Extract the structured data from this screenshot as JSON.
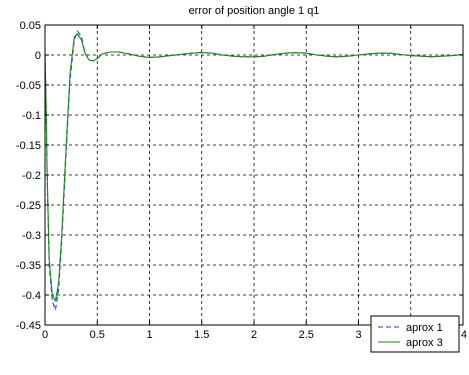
{
  "chart_data": {
    "type": "line",
    "title": "error of position angle 1 q1",
    "xlabel": "",
    "ylabel": "",
    "xlim": [
      0,
      4
    ],
    "ylim": [
      -0.45,
      0.05
    ],
    "xticks": [
      0,
      0.5,
      1,
      1.5,
      2,
      2.5,
      3,
      3.5,
      4
    ],
    "xtick_labels": [
      "0",
      "0.5",
      "1",
      "1.5",
      "2",
      "2.5",
      "3",
      "3.5",
      "4"
    ],
    "yticks": [
      0.05,
      0,
      -0.05,
      -0.1,
      -0.15,
      -0.2,
      -0.25,
      -0.3,
      -0.35,
      -0.4,
      -0.45
    ],
    "ytick_labels": [
      "0.05",
      "0",
      "-0.05",
      "-0.1",
      "-0.15",
      "-0.2",
      "-0.25",
      "-0.3",
      "-0.35",
      "-0.4",
      "-0.45"
    ],
    "grid": true,
    "legend_position": "bottom-right",
    "series": [
      {
        "name": "aprox 1",
        "color": "#1f3fcf",
        "style": "dashed",
        "x": [
          0,
          0.01,
          0.02,
          0.04,
          0.07,
          0.1,
          0.13,
          0.16,
          0.2,
          0.24,
          0.28,
          0.31,
          0.35,
          0.38,
          0.42,
          0.46,
          0.5,
          0.55,
          0.62,
          0.7,
          0.8,
          0.9,
          1.0,
          1.1,
          1.2,
          1.3,
          1.4,
          1.5,
          1.6,
          1.7,
          1.8,
          1.9,
          2.0,
          2.1,
          2.2,
          2.3,
          2.4,
          2.5,
          2.6,
          2.7,
          2.8,
          2.9,
          3.0,
          3.1,
          3.2,
          3.3,
          3.4,
          3.5,
          3.6,
          3.7,
          3.8,
          3.9,
          4.0
        ],
        "values": [
          0,
          -0.08,
          -0.2,
          -0.35,
          -0.41,
          -0.425,
          -0.39,
          -0.31,
          -0.17,
          -0.04,
          0.025,
          0.04,
          0.03,
          0.005,
          -0.008,
          -0.01,
          -0.006,
          0.002,
          0.005,
          0.005,
          0.002,
          -0.002,
          -0.004,
          -0.003,
          -0.001,
          0.001,
          0.003,
          0.004,
          0.003,
          0.0,
          -0.002,
          -0.003,
          -0.003,
          -0.002,
          0.001,
          0.003,
          0.004,
          0.003,
          0.0,
          -0.002,
          -0.003,
          -0.002,
          0.0,
          0.002,
          0.003,
          0.003,
          0.001,
          -0.001,
          -0.002,
          -0.003,
          -0.002,
          -0.001,
          0.001
        ]
      },
      {
        "name": "aprox 3",
        "color": "#1a8a1a",
        "style": "solid",
        "x": [
          0,
          0.01,
          0.02,
          0.04,
          0.07,
          0.1,
          0.13,
          0.16,
          0.2,
          0.24,
          0.28,
          0.31,
          0.35,
          0.38,
          0.42,
          0.46,
          0.5,
          0.55,
          0.62,
          0.7,
          0.8,
          0.9,
          1.0,
          1.1,
          1.2,
          1.3,
          1.4,
          1.5,
          1.6,
          1.7,
          1.8,
          1.9,
          2.0,
          2.1,
          2.2,
          2.3,
          2.4,
          2.5,
          2.6,
          2.7,
          2.8,
          2.9,
          3.0,
          3.1,
          3.2,
          3.3,
          3.4,
          3.5,
          3.6,
          3.7,
          3.8,
          3.9,
          4.0
        ],
        "values": [
          0,
          -0.08,
          -0.19,
          -0.34,
          -0.4,
          -0.41,
          -0.38,
          -0.3,
          -0.16,
          -0.03,
          0.03,
          0.035,
          0.025,
          0.004,
          -0.008,
          -0.01,
          -0.006,
          0.002,
          0.005,
          0.005,
          0.002,
          -0.002,
          -0.004,
          -0.003,
          -0.001,
          0.001,
          0.003,
          0.004,
          0.003,
          0.0,
          -0.002,
          -0.003,
          -0.003,
          -0.002,
          0.001,
          0.003,
          0.004,
          0.003,
          0.0,
          -0.002,
          -0.003,
          -0.002,
          0.0,
          0.002,
          0.003,
          0.003,
          0.001,
          -0.001,
          -0.002,
          -0.003,
          -0.002,
          -0.001,
          0.001
        ]
      }
    ]
  }
}
